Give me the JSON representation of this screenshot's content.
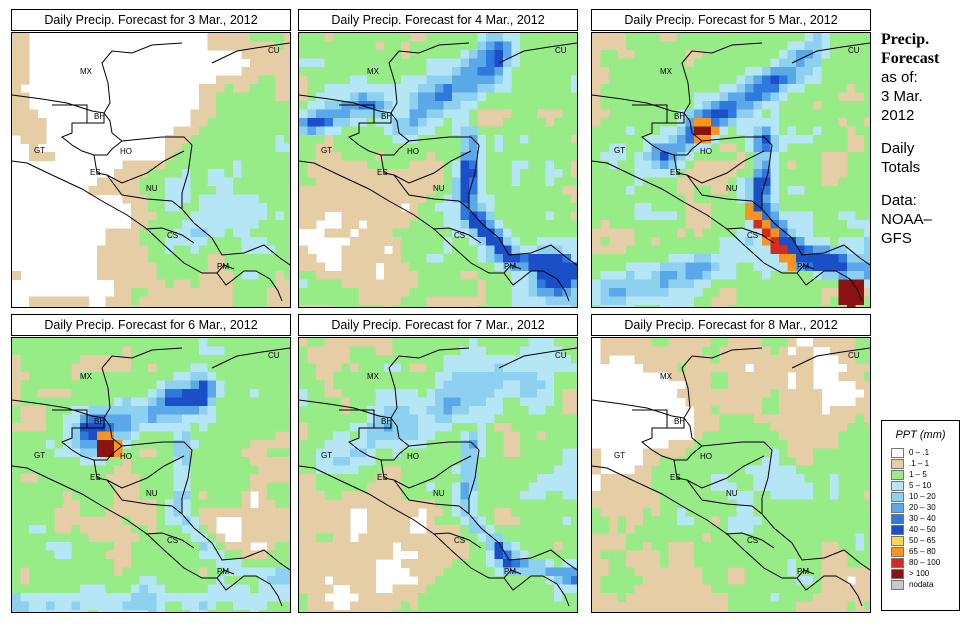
{
  "panels": [
    {
      "title": "Daily Precip. Forecast for  3 Mar., 2012",
      "scene": 0
    },
    {
      "title": "Daily Precip. Forecast for  4 Mar., 2012",
      "scene": 1
    },
    {
      "title": "Daily Precip. Forecast for  5 Mar., 2012",
      "scene": 2
    },
    {
      "title": "Daily Precip. Forecast for  6 Mar., 2012",
      "scene": 3
    },
    {
      "title": "Daily Precip. Forecast for  7 Mar., 2012",
      "scene": 4
    },
    {
      "title": "Daily Precip. Forecast for  8 Mar., 2012",
      "scene": 5
    }
  ],
  "country_labels": [
    "MX",
    "BH",
    "GT",
    "HO",
    "ES",
    "NU",
    "CS",
    "PM",
    "CU"
  ],
  "side": {
    "title_1": "Precip.",
    "title_2": "Forecast",
    "asof_1": "as of:",
    "asof_2": "3 Mar.",
    "asof_3": "2012",
    "daily_1": "Daily",
    "daily_2": "Totals",
    "data_1": "Data:",
    "data_2": "NOAA–",
    "data_3": "GFS"
  },
  "legend": {
    "title": "PPT (mm)",
    "items": [
      {
        "label": "0 – .1",
        "color": "#ffffff"
      },
      {
        "label": ".1 – 1",
        "color": "#e5cda6"
      },
      {
        "label": "1 – 5",
        "color": "#98ec88"
      },
      {
        "label": "5 – 10",
        "color": "#b5e6f5"
      },
      {
        "label": "10 – 20",
        "color": "#8ed0f0"
      },
      {
        "label": "20 – 30",
        "color": "#5aa8e8"
      },
      {
        "label": "30 – 40",
        "color": "#2f78dd"
      },
      {
        "label": "40 – 50",
        "color": "#1b4fc8"
      },
      {
        "label": "50 – 65",
        "color": "#fcd65a"
      },
      {
        "label": "65 – 80",
        "color": "#f7941d"
      },
      {
        "label": "80 – 100",
        "color": "#d42b1e"
      },
      {
        "label": "> 100",
        "color": "#8b1212"
      },
      {
        "label": "nodata",
        "color": "#c8c8c8"
      }
    ]
  }
}
